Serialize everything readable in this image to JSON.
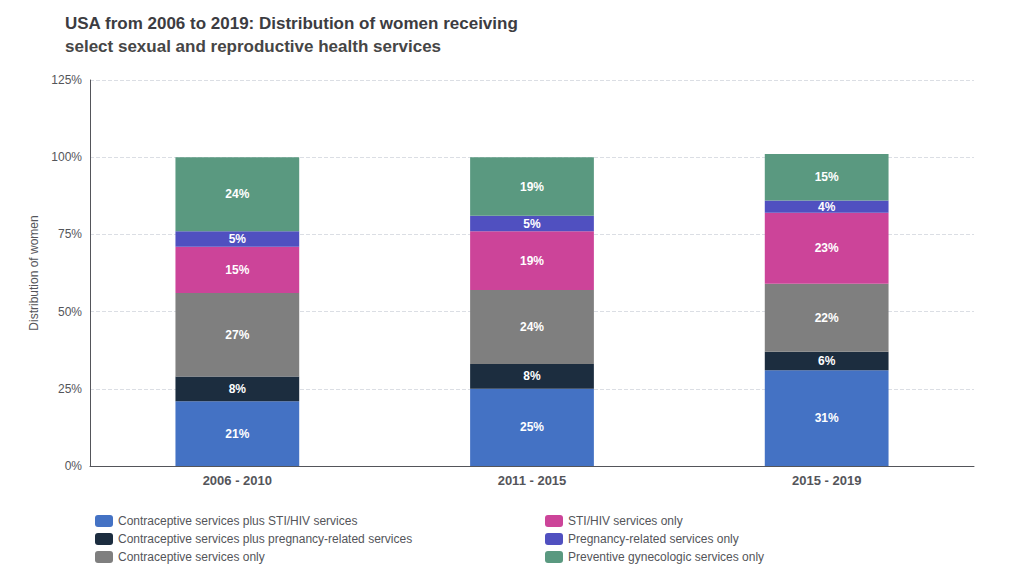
{
  "chart_data": {
    "type": "bar",
    "stacked": true,
    "title": "USA from 2006 to 2019: Distribution of women receiving",
    "subtitle": "select sexual and reproductive health services",
    "categories": [
      "2006 - 2010",
      "2011 - 2015",
      "2015 - 2019"
    ],
    "series": [
      {
        "name": "Contraceptive services plus STI/HIV services",
        "color": "#4472c4",
        "values": [
          21,
          25,
          31
        ],
        "value_labels": [
          "21%",
          "25%",
          "31%"
        ]
      },
      {
        "name": "Contraceptive services plus pregnancy-related services",
        "color": "#1c2d3f",
        "values": [
          8,
          8,
          6
        ],
        "value_labels": [
          "8%",
          "8%",
          "6%"
        ]
      },
      {
        "name": "Contraceptive services only",
        "color": "#7f7f7f",
        "values": [
          27,
          24,
          22
        ],
        "value_labels": [
          "27%",
          "24%",
          "22%"
        ]
      },
      {
        "name": "STI/HIV services only",
        "color": "#cc4499",
        "values": [
          15,
          19,
          23
        ],
        "value_labels": [
          "15%",
          "19%",
          "23%"
        ]
      },
      {
        "name": "Pregnancy-related services only",
        "color": "#5050c0",
        "values": [
          5,
          5,
          4
        ],
        "value_labels": [
          "5%",
          "5%",
          "4%"
        ]
      },
      {
        "name": "Preventive gynecologic services only",
        "color": "#5a9980",
        "values": [
          24,
          19,
          15
        ],
        "value_labels": [
          "24%",
          "19%",
          "15%"
        ]
      }
    ],
    "ylabel": "Distribution of women",
    "ylim": [
      0,
      125
    ],
    "yticks": [
      {
        "value": 0,
        "label": "0%"
      },
      {
        "value": 25,
        "label": "25%"
      },
      {
        "value": 50,
        "label": "50%"
      },
      {
        "value": 75,
        "label": "75%"
      },
      {
        "value": 100,
        "label": "100%"
      },
      {
        "value": 125,
        "label": "125%"
      }
    ],
    "grid": true,
    "data_labels": true,
    "legend": "bottom"
  }
}
